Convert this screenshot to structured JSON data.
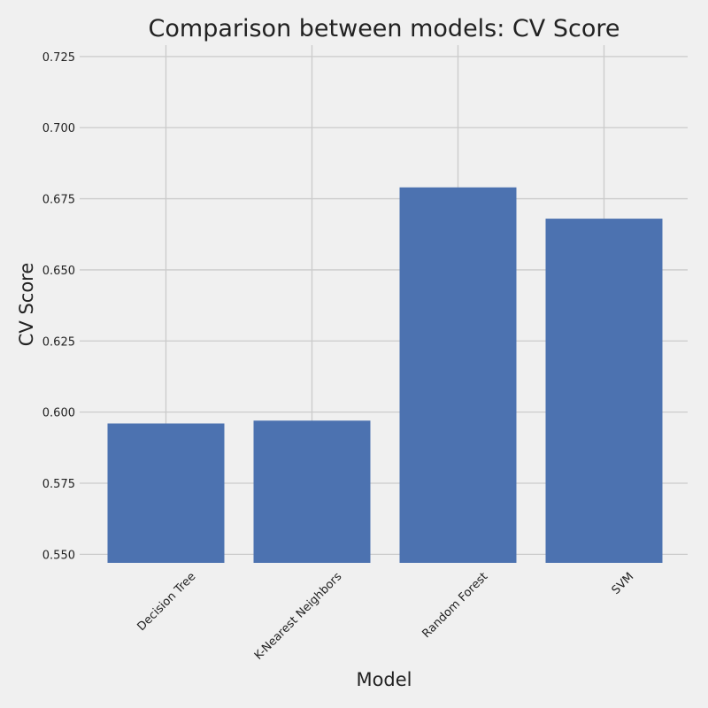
{
  "chart_data": {
    "type": "bar",
    "title": "Comparison between models: CV Score",
    "xlabel": "Model",
    "ylabel": "CV Score",
    "categories": [
      "Decision Tree",
      "K-Nearest Neighbors",
      "Random Forest",
      "SVM"
    ],
    "values": [
      0.596,
      0.597,
      0.679,
      0.668
    ],
    "ylim": [
      0.547,
      0.729
    ],
    "yticks": [
      0.55,
      0.575,
      0.6,
      0.625,
      0.65,
      0.675,
      0.7,
      0.725
    ],
    "ytick_labels": [
      "0.550",
      "0.575",
      "0.600",
      "0.625",
      "0.650",
      "0.675",
      "0.700",
      "0.725"
    ],
    "grid": true,
    "bar_color": "#4c72b0",
    "background_color": "#f0f0f0",
    "grid_color": "#cbcbcb"
  }
}
